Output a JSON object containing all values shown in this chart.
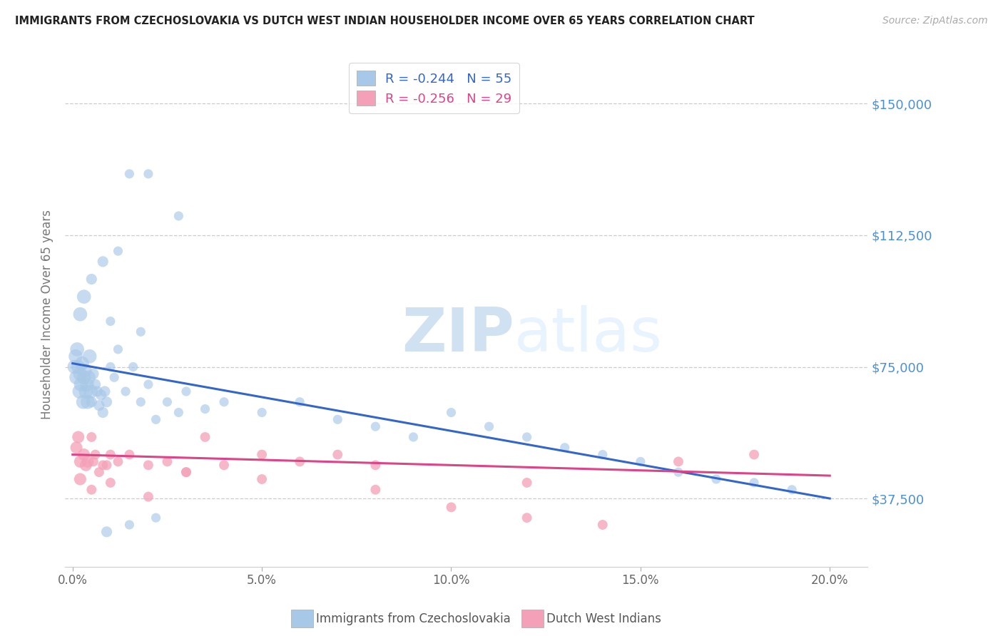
{
  "title": "IMMIGRANTS FROM CZECHOSLOVAKIA VS DUTCH WEST INDIAN HOUSEHOLDER INCOME OVER 65 YEARS CORRELATION CHART",
  "source": "Source: ZipAtlas.com",
  "ylabel": "Householder Income Over 65 years",
  "ytick_labels": [
    "$37,500",
    "$75,000",
    "$112,500",
    "$150,000"
  ],
  "ytick_vals": [
    37500,
    75000,
    112500,
    150000
  ],
  "ylim": [
    18000,
    162000
  ],
  "xlim": [
    -0.2,
    21.0
  ],
  "blue_R": "-0.244",
  "blue_N": "55",
  "pink_R": "-0.256",
  "pink_N": "29",
  "blue_color": "#a8c8e8",
  "pink_color": "#f4a0b8",
  "blue_line_color": "#3366cc",
  "pink_line_color": "#dd4488",
  "axis_label_color": "#4a90d9",
  "blue_scatter_x": [
    0.05,
    0.08,
    0.1,
    0.12,
    0.15,
    0.18,
    0.2,
    0.22,
    0.25,
    0.28,
    0.3,
    0.32,
    0.35,
    0.38,
    0.4,
    0.42,
    0.45,
    0.48,
    0.5,
    0.55,
    0.6,
    0.65,
    0.7,
    0.75,
    0.8,
    0.85,
    0.9,
    1.0,
    1.1,
    1.2,
    1.4,
    1.6,
    1.8,
    2.0,
    2.2,
    2.5,
    2.8,
    3.0,
    3.5,
    4.0,
    5.0,
    6.0,
    7.0,
    8.0,
    9.0,
    10.0,
    11.0,
    12.0,
    13.0,
    14.0,
    15.0,
    16.0,
    17.0,
    18.0,
    19.0
  ],
  "blue_scatter_y": [
    75000,
    78000,
    72000,
    80000,
    75000,
    68000,
    73000,
    70000,
    76000,
    65000,
    72000,
    74000,
    68000,
    70000,
    65000,
    72000,
    78000,
    68000,
    65000,
    73000,
    70000,
    68000,
    64000,
    67000,
    62000,
    68000,
    65000,
    75000,
    72000,
    80000,
    68000,
    75000,
    65000,
    70000,
    60000,
    65000,
    62000,
    68000,
    63000,
    65000,
    62000,
    65000,
    60000,
    58000,
    55000,
    62000,
    58000,
    55000,
    52000,
    50000,
    48000,
    45000,
    43000,
    42000,
    40000
  ],
  "blue_scatter_y_outliers": [
    130000,
    130000,
    118000,
    108000,
    105000,
    100000,
    95000,
    90000,
    88000,
    85000,
    30000,
    28000,
    32000
  ],
  "blue_scatter_x_outliers": [
    1.5,
    2.0,
    2.8,
    1.2,
    0.8,
    0.5,
    0.3,
    0.2,
    1.0,
    1.8,
    1.5,
    0.9,
    2.2
  ],
  "pink_scatter_x": [
    0.1,
    0.2,
    0.3,
    0.4,
    0.5,
    0.6,
    0.8,
    1.0,
    1.2,
    1.5,
    2.0,
    2.5,
    3.0,
    3.5,
    4.0,
    5.0,
    6.0,
    7.0,
    8.0,
    10.0,
    12.0,
    14.0,
    16.0,
    18.0,
    0.15,
    0.35,
    0.55,
    0.7,
    0.9
  ],
  "pink_scatter_y": [
    52000,
    48000,
    50000,
    48000,
    55000,
    50000,
    47000,
    50000,
    48000,
    50000,
    47000,
    48000,
    45000,
    55000,
    47000,
    50000,
    48000,
    50000,
    47000,
    35000,
    32000,
    30000,
    48000,
    50000,
    55000,
    47000,
    48000,
    45000,
    47000
  ],
  "pink_scatter_y_low": [
    43000,
    40000,
    42000,
    38000,
    45000,
    43000,
    40000,
    42000
  ],
  "pink_scatter_x_low": [
    0.2,
    0.5,
    1.0,
    2.0,
    3.0,
    5.0,
    8.0,
    12.0
  ]
}
